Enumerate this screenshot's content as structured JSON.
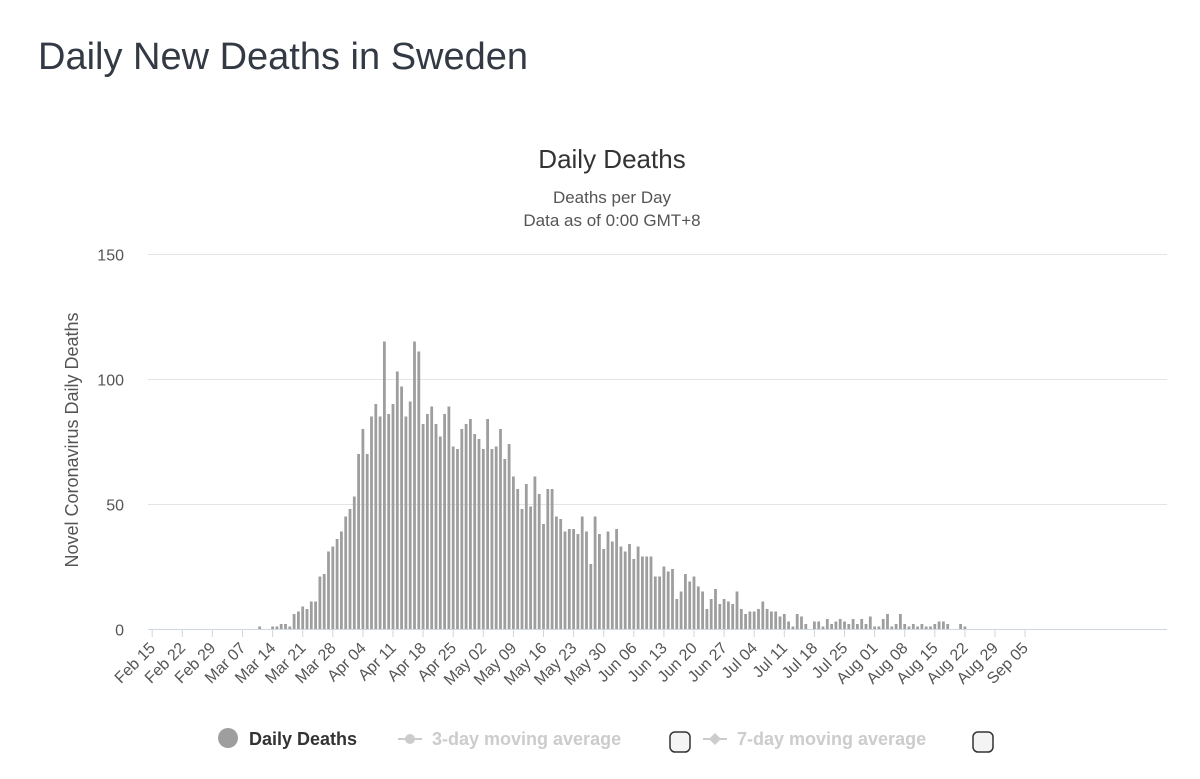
{
  "page": {
    "title": "Daily New Deaths in Sweden"
  },
  "chart_data": {
    "type": "bar",
    "title": "Daily Deaths",
    "subtitle_lines": [
      "Deaths per Day",
      "Data as of 0:00 GMT+8"
    ],
    "ylabel": "Novel Coronavirus Daily Deaths",
    "xlabel": "",
    "ylim": [
      0,
      150
    ],
    "yticks": [
      0,
      50,
      100,
      150
    ],
    "grid": true,
    "x_start": "Feb 15",
    "x_tick_labels": [
      "Feb 15",
      "Feb 22",
      "Feb 29",
      "Mar 07",
      "Mar 14",
      "Mar 21",
      "Mar 28",
      "Apr 04",
      "Apr 11",
      "Apr 18",
      "Apr 25",
      "May 02",
      "May 09",
      "May 16",
      "May 23",
      "May 30",
      "Jun 06",
      "Jun 13",
      "Jun 20",
      "Jun 27",
      "Jul 04",
      "Jul 11",
      "Jul 18",
      "Jul 25",
      "Aug 01",
      "Aug 08",
      "Aug 15",
      "Aug 22",
      "Aug 29",
      "Sep 05"
    ],
    "series": [
      {
        "name": "Daily Deaths",
        "color": "#9e9e9e",
        "values": [
          0,
          0,
          0,
          0,
          0,
          0,
          0,
          0,
          0,
          0,
          0,
          0,
          0,
          0,
          0,
          0,
          0,
          0,
          0,
          0,
          0,
          0,
          0,
          0,
          0,
          1,
          0,
          0,
          1,
          1,
          2,
          2,
          1,
          6,
          7,
          9,
          8,
          11,
          11,
          21,
          22,
          31,
          33,
          36,
          39,
          45,
          48,
          53,
          70,
          80,
          70,
          85,
          90,
          85,
          115,
          86,
          90,
          103,
          97,
          85,
          91,
          115,
          111,
          82,
          86,
          89,
          82,
          77,
          86,
          89,
          73,
          72,
          80,
          82,
          84,
          78,
          76,
          72,
          84,
          72,
          73,
          80,
          68,
          74,
          61,
          56,
          48,
          58,
          49,
          61,
          54,
          42,
          56,
          56,
          45,
          44,
          39,
          40,
          40,
          38,
          45,
          39,
          26,
          45,
          38,
          32,
          39,
          35,
          40,
          33,
          31,
          34,
          28,
          33,
          29,
          29,
          29,
          21,
          21,
          25,
          23,
          24,
          12,
          15,
          22,
          19,
          21,
          17,
          15,
          8,
          12,
          16,
          10,
          12,
          11,
          10,
          15,
          8,
          6,
          7,
          7,
          8,
          11,
          8,
          7,
          7,
          5,
          6,
          3,
          1,
          6,
          5,
          2,
          0,
          3,
          3,
          1,
          4,
          2,
          3,
          4,
          3,
          2,
          4,
          2,
          4,
          2,
          5,
          1,
          1,
          4,
          6,
          1,
          2,
          6,
          2,
          1,
          2,
          1,
          2,
          1,
          1,
          2,
          3,
          3,
          2,
          0,
          0,
          2,
          1
        ]
      },
      {
        "name": "3-day moving average",
        "color": "#cccccc",
        "visible": false
      },
      {
        "name": "7-day moving average",
        "color": "#cccccc",
        "visible": false
      }
    ],
    "legend_placement": "bottom-center"
  }
}
